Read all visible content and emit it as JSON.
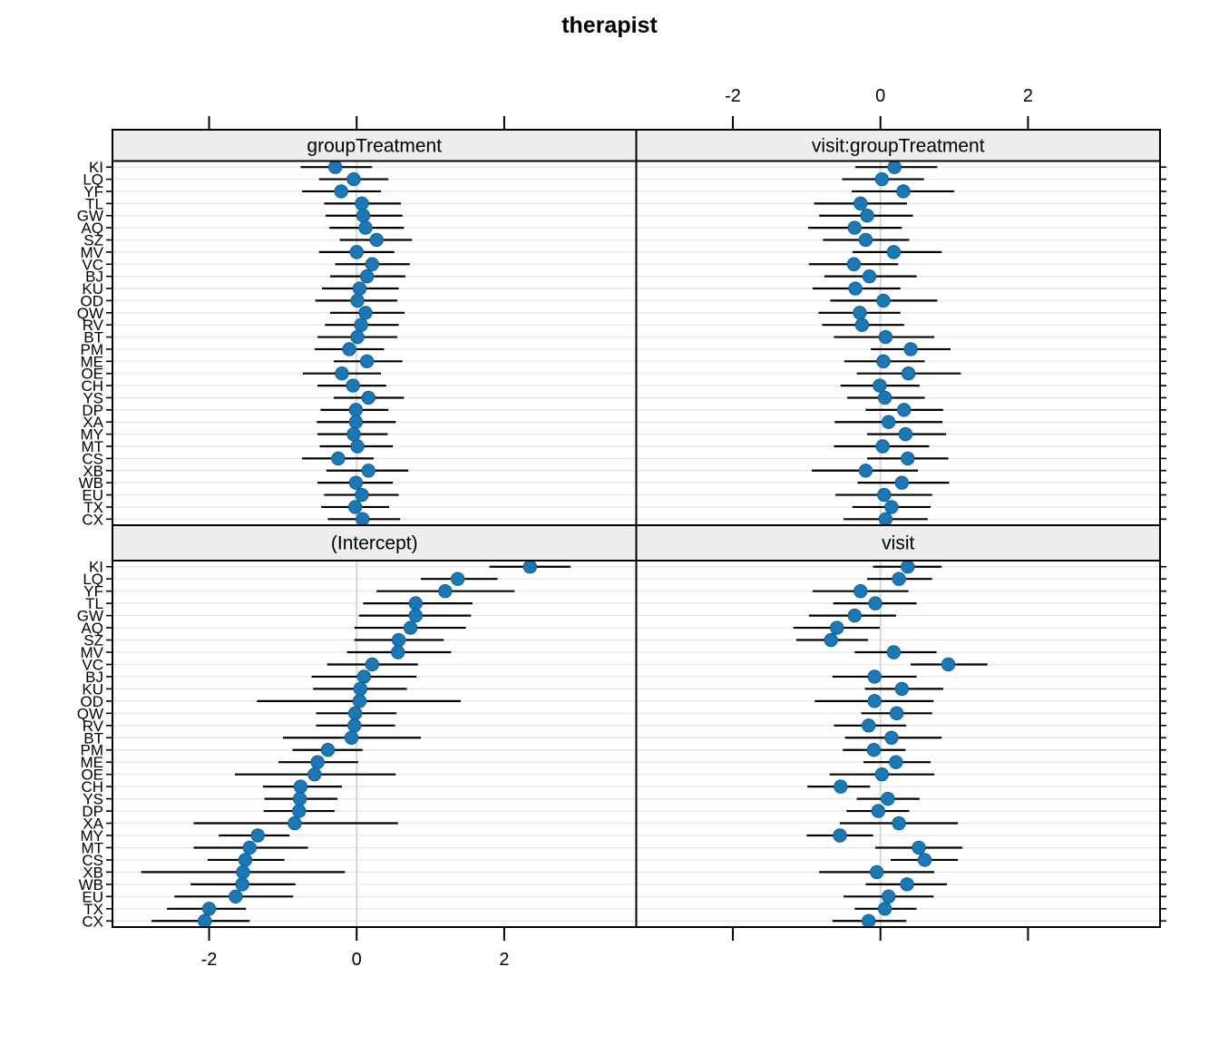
{
  "title": "therapist",
  "colors": {
    "point_fill": "#1b78b4",
    "point_stroke": "#0f5e96",
    "strip_bg": "#ededed",
    "panel_border": "#000000",
    "gridline": "#e3e3e3",
    "zero_line": "#d6d6d6",
    "bar": "#000000"
  },
  "chart_data": {
    "type": "dotplot-grid",
    "title": "therapist",
    "xlim": [
      -3.31,
      3.79
    ],
    "x_ticks": [
      -2,
      0,
      2
    ],
    "axis_label_sides": {
      "top_labels_over": "right",
      "bottom_labels_under": "left"
    },
    "grid": "horizontal-per-row",
    "n_rows": 30,
    "y_labels_top_to_bottom": [
      "KI",
      "LQ",
      "YF",
      "TL",
      "GW",
      "AQ",
      "SZ",
      "MV",
      "VC",
      "BJ",
      "KU",
      "OD",
      "QW",
      "RV",
      "BT",
      "PM",
      "ME",
      "OE",
      "CH",
      "YS",
      "DP",
      "XA",
      "MY",
      "MT",
      "CS",
      "XB",
      "WB",
      "EU",
      "TX",
      "CX"
    ],
    "panels": [
      {
        "label": "groupTreatment",
        "position": "top-left",
        "rows_lo_mid_hi": [
          [
            -0.76,
            -0.29,
            0.21
          ],
          [
            -0.51,
            -0.04,
            0.43
          ],
          [
            -0.74,
            -0.21,
            0.33
          ],
          [
            -0.44,
            0.07,
            0.6
          ],
          [
            -0.42,
            0.09,
            0.62
          ],
          [
            -0.37,
            0.12,
            0.64
          ],
          [
            -0.23,
            0.27,
            0.75
          ],
          [
            -0.51,
            0.0,
            0.51
          ],
          [
            -0.29,
            0.21,
            0.72
          ],
          [
            -0.36,
            0.14,
            0.66
          ],
          [
            -0.47,
            0.04,
            0.57
          ],
          [
            -0.56,
            0.01,
            0.55
          ],
          [
            -0.36,
            0.12,
            0.65
          ],
          [
            -0.43,
            0.06,
            0.57
          ],
          [
            -0.53,
            0.01,
            0.55
          ],
          [
            -0.57,
            -0.1,
            0.37
          ],
          [
            -0.31,
            0.14,
            0.62
          ],
          [
            -0.73,
            -0.2,
            0.33
          ],
          [
            -0.53,
            -0.05,
            0.4
          ],
          [
            -0.31,
            0.16,
            0.64
          ],
          [
            -0.49,
            -0.01,
            0.43
          ],
          [
            -0.54,
            -0.01,
            0.53
          ],
          [
            -0.53,
            -0.04,
            0.42
          ],
          [
            -0.5,
            0.01,
            0.49
          ],
          [
            -0.74,
            -0.25,
            0.23
          ],
          [
            -0.41,
            0.16,
            0.7
          ],
          [
            -0.53,
            -0.01,
            0.49
          ],
          [
            -0.44,
            0.07,
            0.57
          ],
          [
            -0.48,
            -0.02,
            0.44
          ],
          [
            -0.39,
            0.08,
            0.59
          ]
        ]
      },
      {
        "label": "visit:groupTreatment",
        "position": "top-right",
        "rows_lo_mid_hi": [
          [
            -0.34,
            0.19,
            0.77
          ],
          [
            -0.52,
            0.02,
            0.59
          ],
          [
            -0.39,
            0.31,
            1.0
          ],
          [
            -0.9,
            -0.27,
            0.36
          ],
          [
            -0.83,
            -0.18,
            0.44
          ],
          [
            -0.98,
            -0.35,
            0.29
          ],
          [
            -0.78,
            -0.2,
            0.39
          ],
          [
            -0.38,
            0.18,
            0.83
          ],
          [
            -0.97,
            -0.36,
            0.24
          ],
          [
            -0.76,
            -0.15,
            0.49
          ],
          [
            -0.92,
            -0.34,
            0.27
          ],
          [
            -0.68,
            0.04,
            0.77
          ],
          [
            -0.84,
            -0.28,
            0.27
          ],
          [
            -0.79,
            -0.25,
            0.32
          ],
          [
            -0.63,
            0.07,
            0.73
          ],
          [
            -0.13,
            0.41,
            0.95
          ],
          [
            -0.49,
            0.04,
            0.6
          ],
          [
            -0.32,
            0.38,
            1.09
          ],
          [
            -0.54,
            -0.01,
            0.53
          ],
          [
            -0.45,
            0.06,
            0.6
          ],
          [
            -0.2,
            0.32,
            0.85
          ],
          [
            -0.62,
            0.11,
            0.84
          ],
          [
            -0.18,
            0.34,
            0.89
          ],
          [
            -0.63,
            0.03,
            0.66
          ],
          [
            -0.18,
            0.37,
            0.92
          ],
          [
            -0.93,
            -0.2,
            0.51
          ],
          [
            -0.31,
            0.29,
            0.93
          ],
          [
            -0.61,
            0.05,
            0.7
          ],
          [
            -0.38,
            0.15,
            0.68
          ],
          [
            -0.5,
            0.07,
            0.64
          ]
        ]
      },
      {
        "label": "(Intercept)",
        "position": "bottom-left",
        "rows_lo_mid_hi": [
          [
            1.8,
            2.35,
            2.9
          ],
          [
            0.87,
            1.37,
            1.91
          ],
          [
            0.27,
            1.2,
            2.14
          ],
          [
            0.09,
            0.8,
            1.57
          ],
          [
            0.03,
            0.8,
            1.55
          ],
          [
            -0.03,
            0.73,
            1.48
          ],
          [
            -0.03,
            0.57,
            1.18
          ],
          [
            -0.13,
            0.56,
            1.28
          ],
          [
            -0.4,
            0.21,
            0.83
          ],
          [
            -0.61,
            0.1,
            0.81
          ],
          [
            -0.59,
            0.05,
            0.68
          ],
          [
            -1.35,
            0.04,
            1.41
          ],
          [
            -0.55,
            -0.02,
            0.54
          ],
          [
            -0.55,
            -0.03,
            0.52
          ],
          [
            -1.0,
            -0.07,
            0.87
          ],
          [
            -0.87,
            -0.39,
            0.08
          ],
          [
            -1.06,
            -0.53,
            0.02
          ],
          [
            -1.65,
            -0.57,
            0.53
          ],
          [
            -1.27,
            -0.76,
            -0.2
          ],
          [
            -1.25,
            -0.77,
            -0.26
          ],
          [
            -1.26,
            -0.78,
            -0.3
          ],
          [
            -2.21,
            -0.84,
            0.56
          ],
          [
            -1.87,
            -1.34,
            -0.91
          ],
          [
            -2.21,
            -1.45,
            -0.66
          ],
          [
            -2.02,
            -1.51,
            -0.98
          ],
          [
            -2.92,
            -1.54,
            -0.16
          ],
          [
            -2.25,
            -1.55,
            -0.83
          ],
          [
            -2.47,
            -1.64,
            -0.86
          ],
          [
            -2.57,
            -2.0,
            -1.5
          ],
          [
            -2.78,
            -2.06,
            -1.45
          ]
        ]
      },
      {
        "label": "visit",
        "position": "bottom-right",
        "rows_lo_mid_hi": [
          [
            -0.1,
            0.37,
            0.83
          ],
          [
            -0.18,
            0.25,
            0.7
          ],
          [
            -0.92,
            -0.27,
            0.38
          ],
          [
            -0.64,
            -0.07,
            0.49
          ],
          [
            -0.97,
            -0.35,
            0.21
          ],
          [
            -1.18,
            -0.59,
            -0.01
          ],
          [
            -1.14,
            -0.67,
            -0.17
          ],
          [
            -0.35,
            0.18,
            0.76
          ],
          [
            0.41,
            0.92,
            1.45
          ],
          [
            -0.65,
            -0.08,
            0.49
          ],
          [
            -0.21,
            0.29,
            0.85
          ],
          [
            -0.89,
            -0.08,
            0.72
          ],
          [
            -0.26,
            0.22,
            0.7
          ],
          [
            -0.63,
            -0.16,
            0.35
          ],
          [
            -0.48,
            0.15,
            0.83
          ],
          [
            -0.51,
            -0.09,
            0.34
          ],
          [
            -0.23,
            0.21,
            0.68
          ],
          [
            -0.69,
            0.02,
            0.73
          ],
          [
            -0.99,
            -0.54,
            -0.14
          ],
          [
            -0.32,
            0.1,
            0.53
          ],
          [
            -0.46,
            -0.03,
            0.39
          ],
          [
            -0.55,
            0.25,
            1.05
          ],
          [
            -1.0,
            -0.55,
            -0.1
          ],
          [
            -0.07,
            0.52,
            1.11
          ],
          [
            0.14,
            0.6,
            1.05
          ],
          [
            -0.83,
            -0.05,
            0.73
          ],
          [
            -0.2,
            0.36,
            0.9
          ],
          [
            -0.5,
            0.11,
            0.72
          ],
          [
            -0.35,
            0.06,
            0.49
          ],
          [
            -0.65,
            -0.16,
            0.35
          ]
        ]
      }
    ]
  }
}
